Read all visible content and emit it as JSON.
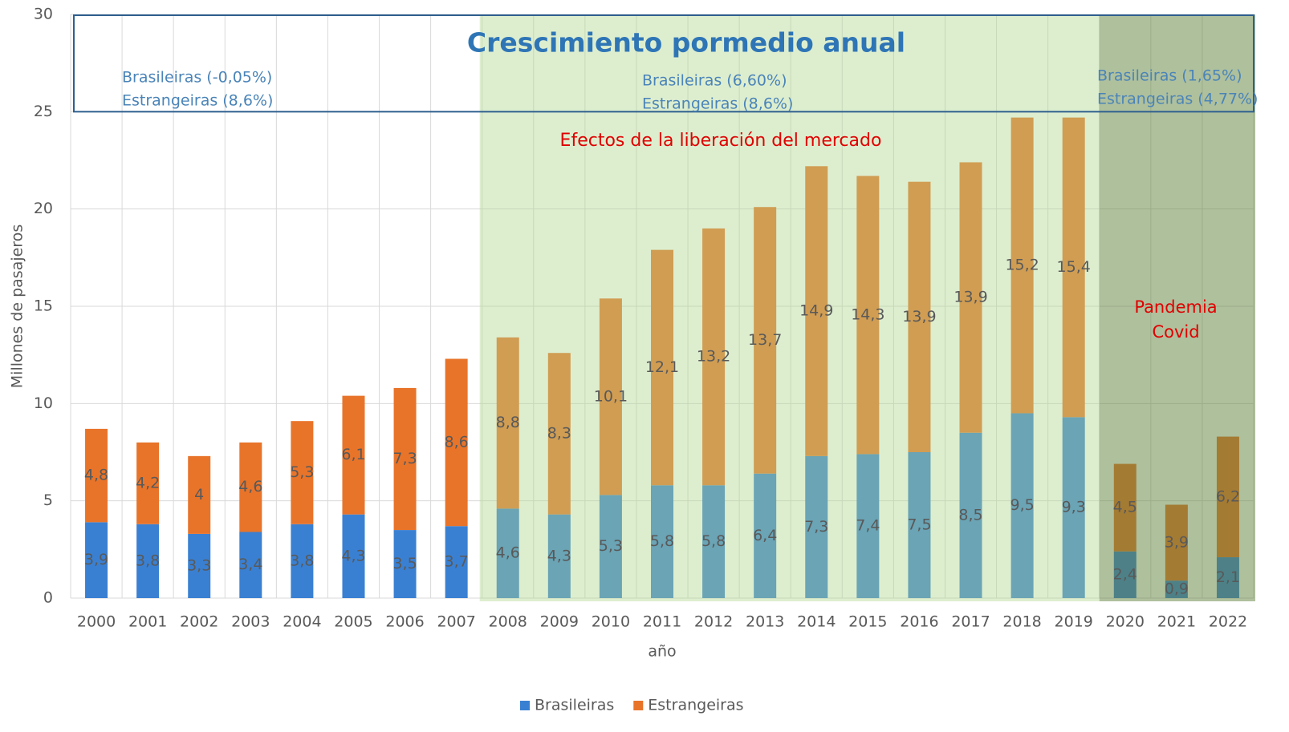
{
  "chart_data": {
    "type": "stacked_bar",
    "title": "Crescimiento pormedio anual",
    "x_label": "año",
    "y_label": "Millones de pasajeros",
    "categories": [
      "2000",
      "2001",
      "2002",
      "2003",
      "2004",
      "2005",
      "2006",
      "2007",
      "2008",
      "2009",
      "2010",
      "2011",
      "2012",
      "2013",
      "2014",
      "2015",
      "2016",
      "2017",
      "2018",
      "2019",
      "2020",
      "2021",
      "2022"
    ],
    "series": [
      {
        "name": "Brasileiras",
        "color": "#3a80d2",
        "values": [
          3.9,
          3.8,
          3.3,
          3.4,
          3.8,
          4.3,
          3.5,
          3.7,
          4.6,
          4.3,
          5.3,
          5.8,
          5.8,
          6.4,
          7.3,
          7.4,
          7.5,
          8.5,
          9.5,
          9.3,
          2.4,
          0.9,
          2.1
        ],
        "value_labels": [
          "3,9",
          "3,8",
          "3,3",
          "3,4",
          "3,8",
          "4,3",
          "3,5",
          "3,7",
          "4,6",
          "4,3",
          "5,3",
          "5,8",
          "5,8",
          "6,4",
          "7,3",
          "7,4",
          "7,5",
          "8,5",
          "9,5",
          "9,3",
          "2,4",
          "0,9",
          "2,1"
        ]
      },
      {
        "name": "Estrangeiras",
        "color": "#e8742a",
        "values": [
          4.8,
          4.2,
          4,
          4.6,
          5.3,
          6.1,
          7.3,
          8.6,
          8.8,
          8.3,
          10.1,
          12.1,
          13.2,
          13.7,
          14.9,
          14.3,
          13.9,
          13.9,
          15.2,
          15.4,
          4.5,
          3.9,
          6.2
        ],
        "value_labels": [
          "4,8",
          "4,2",
          "4",
          "4,6",
          "5,3",
          "6,1",
          "7,3",
          "8,6",
          "8,8",
          "8,3",
          "10,1",
          "12,1",
          "13,2",
          "13,7",
          "14,9",
          "14,3",
          "13,9",
          "13,9",
          "15,2",
          "15,4",
          "4,5",
          "3,9",
          "6,2"
        ]
      }
    ],
    "ylim": [
      0,
      30
    ],
    "yticks": [
      0,
      5,
      10,
      15,
      20,
      25,
      30
    ],
    "grid": true,
    "legend": "bottom",
    "annotations": {
      "periods": [
        {
          "brasileiras": "Brasileiras (-0,05%)",
          "estrangeiras": "Estrangeiras (8,6%)"
        },
        {
          "brasileiras": "Brasileiras (6,60%)",
          "estrangeiras": "Estrangeiras (8,6%)"
        },
        {
          "brasileiras": "Brasileiras (1,65%)",
          "estrangeiras": "Estrangeiras (4,77%)"
        }
      ],
      "market": "Efectos de la liberación del mercado",
      "covid": "Pandemia Covid"
    }
  }
}
